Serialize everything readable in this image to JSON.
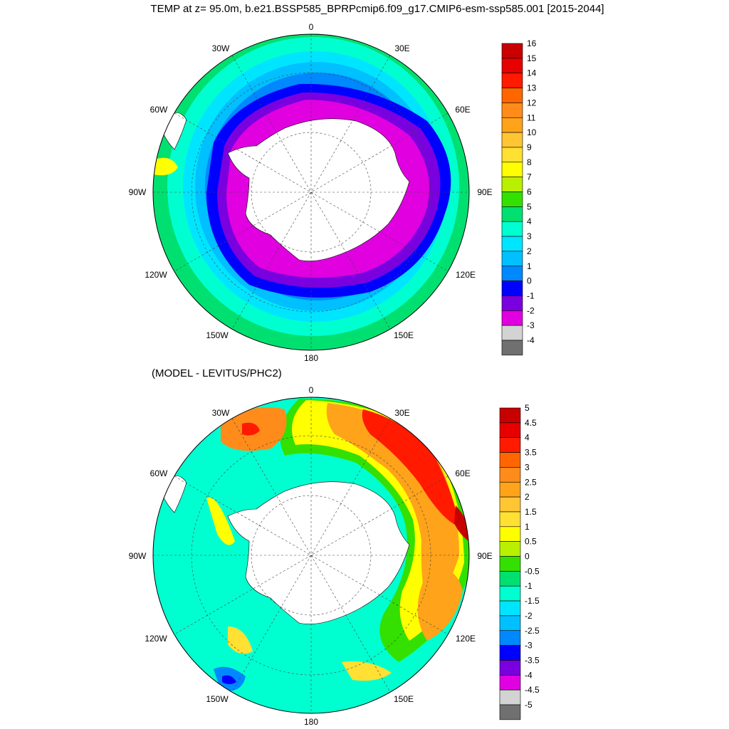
{
  "top_panel": {
    "title": "TEMP at z=  95.0m, b.e21.BSSP585_BPRPcmip6.f09_g17.CMIP6-esm-ssp585.001 [2015-2044]",
    "lon_labels": [
      "0",
      "30E",
      "60E",
      "90E",
      "120E",
      "150E",
      "180",
      "150W",
      "120W",
      "90W",
      "60W",
      "30W"
    ],
    "colorbar": {
      "labels": [
        "16",
        "15",
        "14",
        "13",
        "12",
        "11",
        "10",
        "9",
        "8",
        "7",
        "6",
        "5",
        "4",
        "3",
        "2",
        "1",
        "0",
        "-1",
        "-2",
        "-3",
        "-4"
      ],
      "colors": [
        "#c80000",
        "#e60000",
        "#ff1a00",
        "#ff6600",
        "#ff8c1a",
        "#ffa31a",
        "#ffc533",
        "#ffe033",
        "#ffff00",
        "#b8f000",
        "#33e000",
        "#00e070",
        "#00ffd0",
        "#00e5ff",
        "#00c0ff",
        "#0088ff",
        "#0000ff",
        "#7a00e0",
        "#e000e0",
        "#d3d3d3",
        "#707070"
      ]
    }
  },
  "bottom_panel": {
    "subtitle": "(MODEL - LEVITUS/PHC2)",
    "lon_labels": [
      "0",
      "30E",
      "60E",
      "90E",
      "120E",
      "150E",
      "180",
      "150W",
      "120W",
      "90W",
      "60W",
      "30W"
    ],
    "colorbar": {
      "labels": [
        "5",
        "4.5",
        "4",
        "3.5",
        "3",
        "2.5",
        "2",
        "1.5",
        "1",
        "0.5",
        "0",
        "-0.5",
        "-1",
        "-1.5",
        "-2",
        "-2.5",
        "-3",
        "-3.5",
        "-4",
        "-4.5",
        "-5"
      ],
      "colors": [
        "#c80000",
        "#e60000",
        "#ff1a00",
        "#ff6600",
        "#ff8c1a",
        "#ffa31a",
        "#ffc533",
        "#ffe033",
        "#ffff00",
        "#b8f000",
        "#33e000",
        "#00e070",
        "#00ffd0",
        "#00e5ff",
        "#00c0ff",
        "#0088ff",
        "#0000ff",
        "#7a00e0",
        "#e000e0",
        "#d3d3d3",
        "#707070"
      ]
    }
  }
}
